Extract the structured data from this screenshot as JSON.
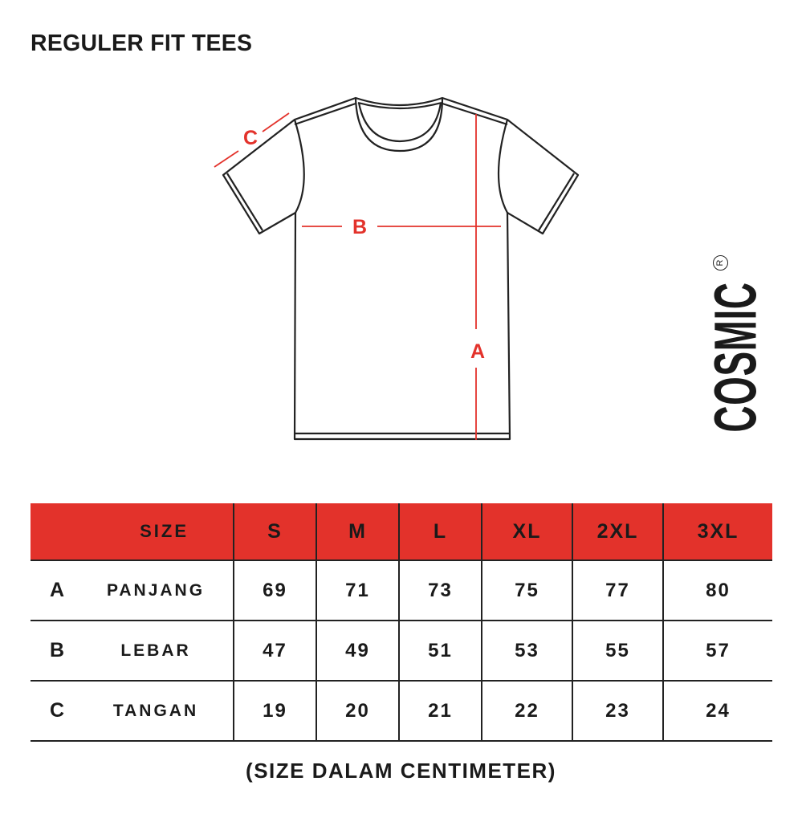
{
  "title": "REGULER FIT TEES",
  "diagram": {
    "labels": {
      "a": "A",
      "b": "B",
      "c": "C"
    },
    "outline_color": "#222222",
    "measure_color": "#e3322b"
  },
  "brand": {
    "name": "COSMIC",
    "registered": "R"
  },
  "table": {
    "header_label": "SIZE",
    "header_color": "#e3322b",
    "sizes": [
      "S",
      "M",
      "L",
      "XL",
      "2XL",
      "3XL"
    ],
    "rows": [
      {
        "code": "A",
        "name": "PANJANG",
        "values": [
          "69",
          "71",
          "73",
          "75",
          "77",
          "80"
        ]
      },
      {
        "code": "B",
        "name": "LEBAR",
        "values": [
          "47",
          "49",
          "51",
          "53",
          "55",
          "57"
        ]
      },
      {
        "code": "C",
        "name": "TANGAN",
        "values": [
          "19",
          "20",
          "21",
          "22",
          "23",
          "24"
        ]
      }
    ]
  },
  "footer": "(SIZE DALAM CENTIMETER)"
}
